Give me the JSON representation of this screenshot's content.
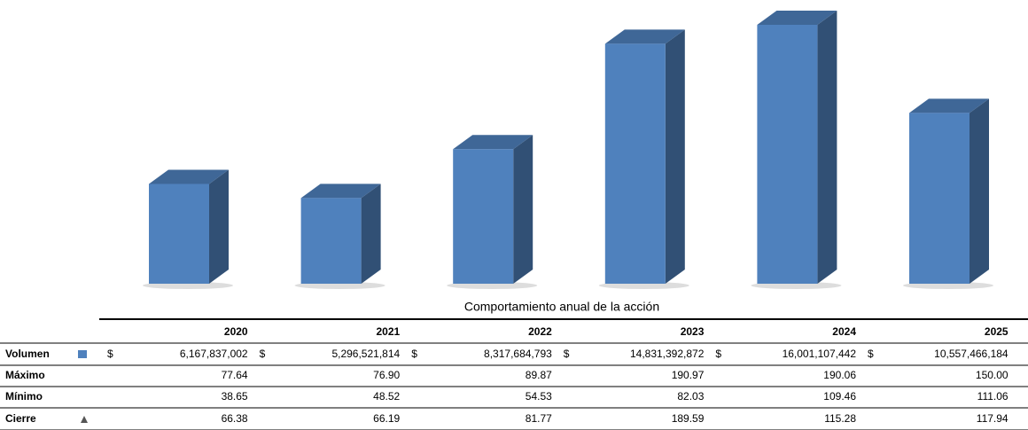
{
  "chart_data": {
    "type": "bar",
    "title": "Comportamiento anual de la acción",
    "categories": [
      "2020",
      "2021",
      "2022",
      "2023",
      "2024",
      "2025"
    ],
    "currency_symbol": "$",
    "series": [
      {
        "name": "Volumen",
        "color": "#4f81bd",
        "marker": "square",
        "values": [
          6167837002,
          5296521814,
          8317684793,
          14831392872,
          16001107442,
          10557466184
        ],
        "value_labels": [
          "6,167,837,002",
          "5,296,521,814",
          "8,317,684,793",
          "14,831,392,872",
          "16,001,107,442",
          "10,557,466,184"
        ]
      },
      {
        "name": "Máximo",
        "values": [
          77.64,
          76.9,
          89.87,
          190.97,
          190.06,
          150
        ],
        "value_labels": [
          "77.64",
          "76.90",
          "89.87",
          "190.97",
          "190.06",
          "150.00"
        ]
      },
      {
        "name": "Mínimo",
        "values": [
          38.65,
          48.52,
          54.53,
          82.03,
          109.46,
          111.06
        ]
      },
      {
        "name": "Cierre",
        "color": "#555555",
        "marker": "triangle",
        "values": [
          66.38,
          66.19,
          81.77,
          189.59,
          115.28,
          117.94
        ]
      }
    ]
  }
}
